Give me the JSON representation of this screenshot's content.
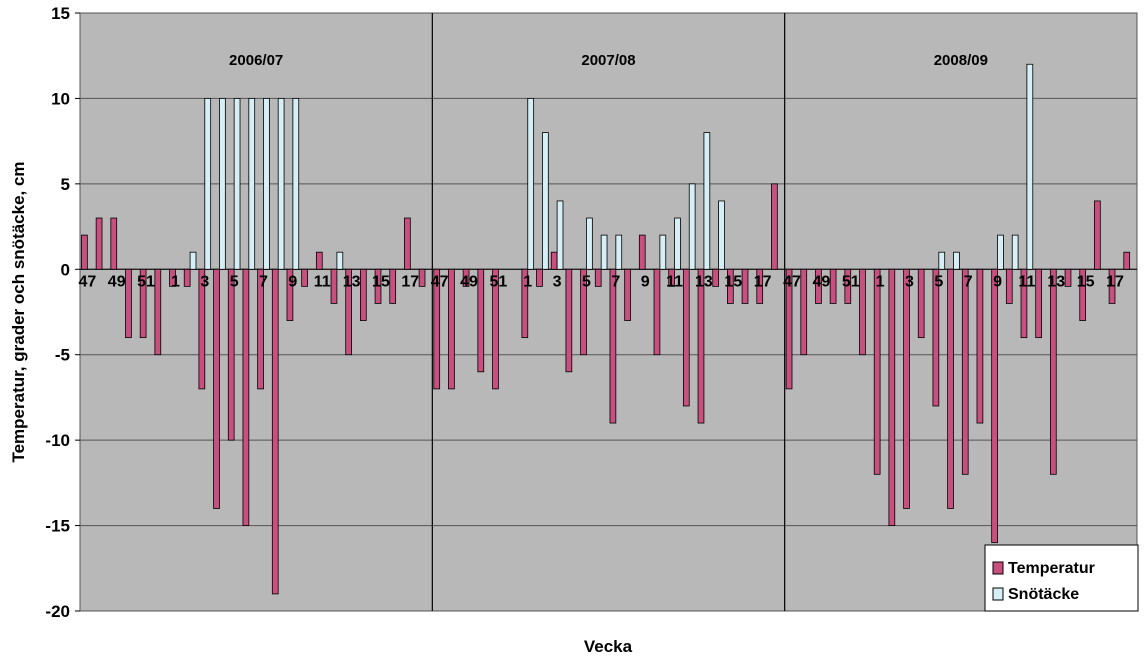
{
  "chart_data": {
    "type": "bar",
    "ylabel": "Temperatur, grader och snötäcke, cm",
    "xlabel": "Vecka",
    "ylim": [
      -20,
      15
    ],
    "yticks": [
      15,
      10,
      5,
      0,
      -5,
      -10,
      -15,
      -20
    ],
    "grid": true,
    "legend_position": "bottom-right",
    "colors": {
      "Temperatur": "#c8507e",
      "Snötäcke": "#d6eef6",
      "plot_bg": "#b8b8b8"
    },
    "seasons": [
      {
        "label": "2006/07",
        "weeks": [
          "47",
          "48",
          "49",
          "50",
          "51",
          "52",
          "1",
          "2",
          "3",
          "4",
          "5",
          "6",
          "7",
          "8",
          "9",
          "10",
          "11",
          "12",
          "13",
          "14",
          "15",
          "16",
          "17",
          "18"
        ],
        "tick_labels": [
          "47",
          "",
          "49",
          "",
          "51",
          "",
          "1",
          "",
          "3",
          "",
          "5",
          "",
          "7",
          "",
          "9",
          "",
          "11",
          "",
          "13",
          "",
          "15",
          "",
          "17",
          ""
        ],
        "temperatur": [
          2,
          3,
          3,
          -4,
          -4,
          -5,
          -1,
          -1,
          -7,
          -14,
          -10,
          -15,
          -7,
          -19,
          -3,
          -1,
          1,
          -2,
          -5,
          -3,
          -2,
          -2,
          3,
          -1
        ],
        "snotacke": [
          0,
          0,
          0,
          0,
          0,
          0,
          0,
          1,
          10,
          10,
          10,
          10,
          10,
          10,
          10,
          0,
          0,
          1,
          0,
          0,
          0,
          0,
          0,
          0
        ]
      },
      {
        "label": "2007/08",
        "weeks": [
          "47",
          "48",
          "49",
          "50",
          "51",
          "52",
          "1",
          "2",
          "3",
          "4",
          "5",
          "6",
          "7",
          "8",
          "9",
          "10",
          "11",
          "12",
          "13",
          "14",
          "15",
          "16",
          "17",
          "18"
        ],
        "tick_labels": [
          "47",
          "",
          "49",
          "",
          "51",
          "",
          "1",
          "",
          "3",
          "",
          "5",
          "",
          "7",
          "",
          "9",
          "",
          "11",
          "",
          "13",
          "",
          "15",
          "",
          "17",
          ""
        ],
        "temperatur": [
          -7,
          -7,
          -1,
          -6,
          -7,
          0,
          -4,
          -1,
          1,
          -6,
          -5,
          -1,
          -9,
          -3,
          2,
          -5,
          -1,
          -8,
          -9,
          -1,
          -2,
          -2,
          -2,
          5
        ],
        "snotacke": [
          0,
          0,
          0,
          0,
          0,
          0,
          10,
          8,
          4,
          0,
          3,
          2,
          2,
          0,
          0,
          2,
          3,
          5,
          8,
          4,
          0,
          0,
          0,
          0
        ]
      },
      {
        "label": "2008/09",
        "weeks": [
          "47",
          "48",
          "49",
          "50",
          "51",
          "52",
          "1",
          "2",
          "3",
          "4",
          "5",
          "6",
          "7",
          "8",
          "9",
          "10",
          "11",
          "12",
          "13",
          "14",
          "15",
          "16",
          "17",
          "18"
        ],
        "tick_labels": [
          "47",
          "",
          "49",
          "",
          "51",
          "",
          "1",
          "",
          "3",
          "",
          "5",
          "",
          "7",
          "",
          "9",
          "",
          "11",
          "",
          "13",
          "",
          "15",
          "",
          "17",
          ""
        ],
        "temperatur": [
          -7,
          -5,
          -2,
          -2,
          -2,
          -5,
          -12,
          -15,
          -14,
          -4,
          -8,
          -14,
          -12,
          -9,
          -16,
          -2,
          -4,
          -4,
          -12,
          -1,
          -3,
          4,
          -2,
          1
        ],
        "snotacke": [
          0,
          0,
          0,
          0,
          0,
          0,
          0,
          0,
          0,
          0,
          1,
          1,
          0,
          0,
          2,
          2,
          12,
          0,
          0,
          0,
          0,
          0,
          0,
          0
        ]
      }
    ],
    "legend": [
      "Temperatur",
      "Snötäcke"
    ]
  }
}
